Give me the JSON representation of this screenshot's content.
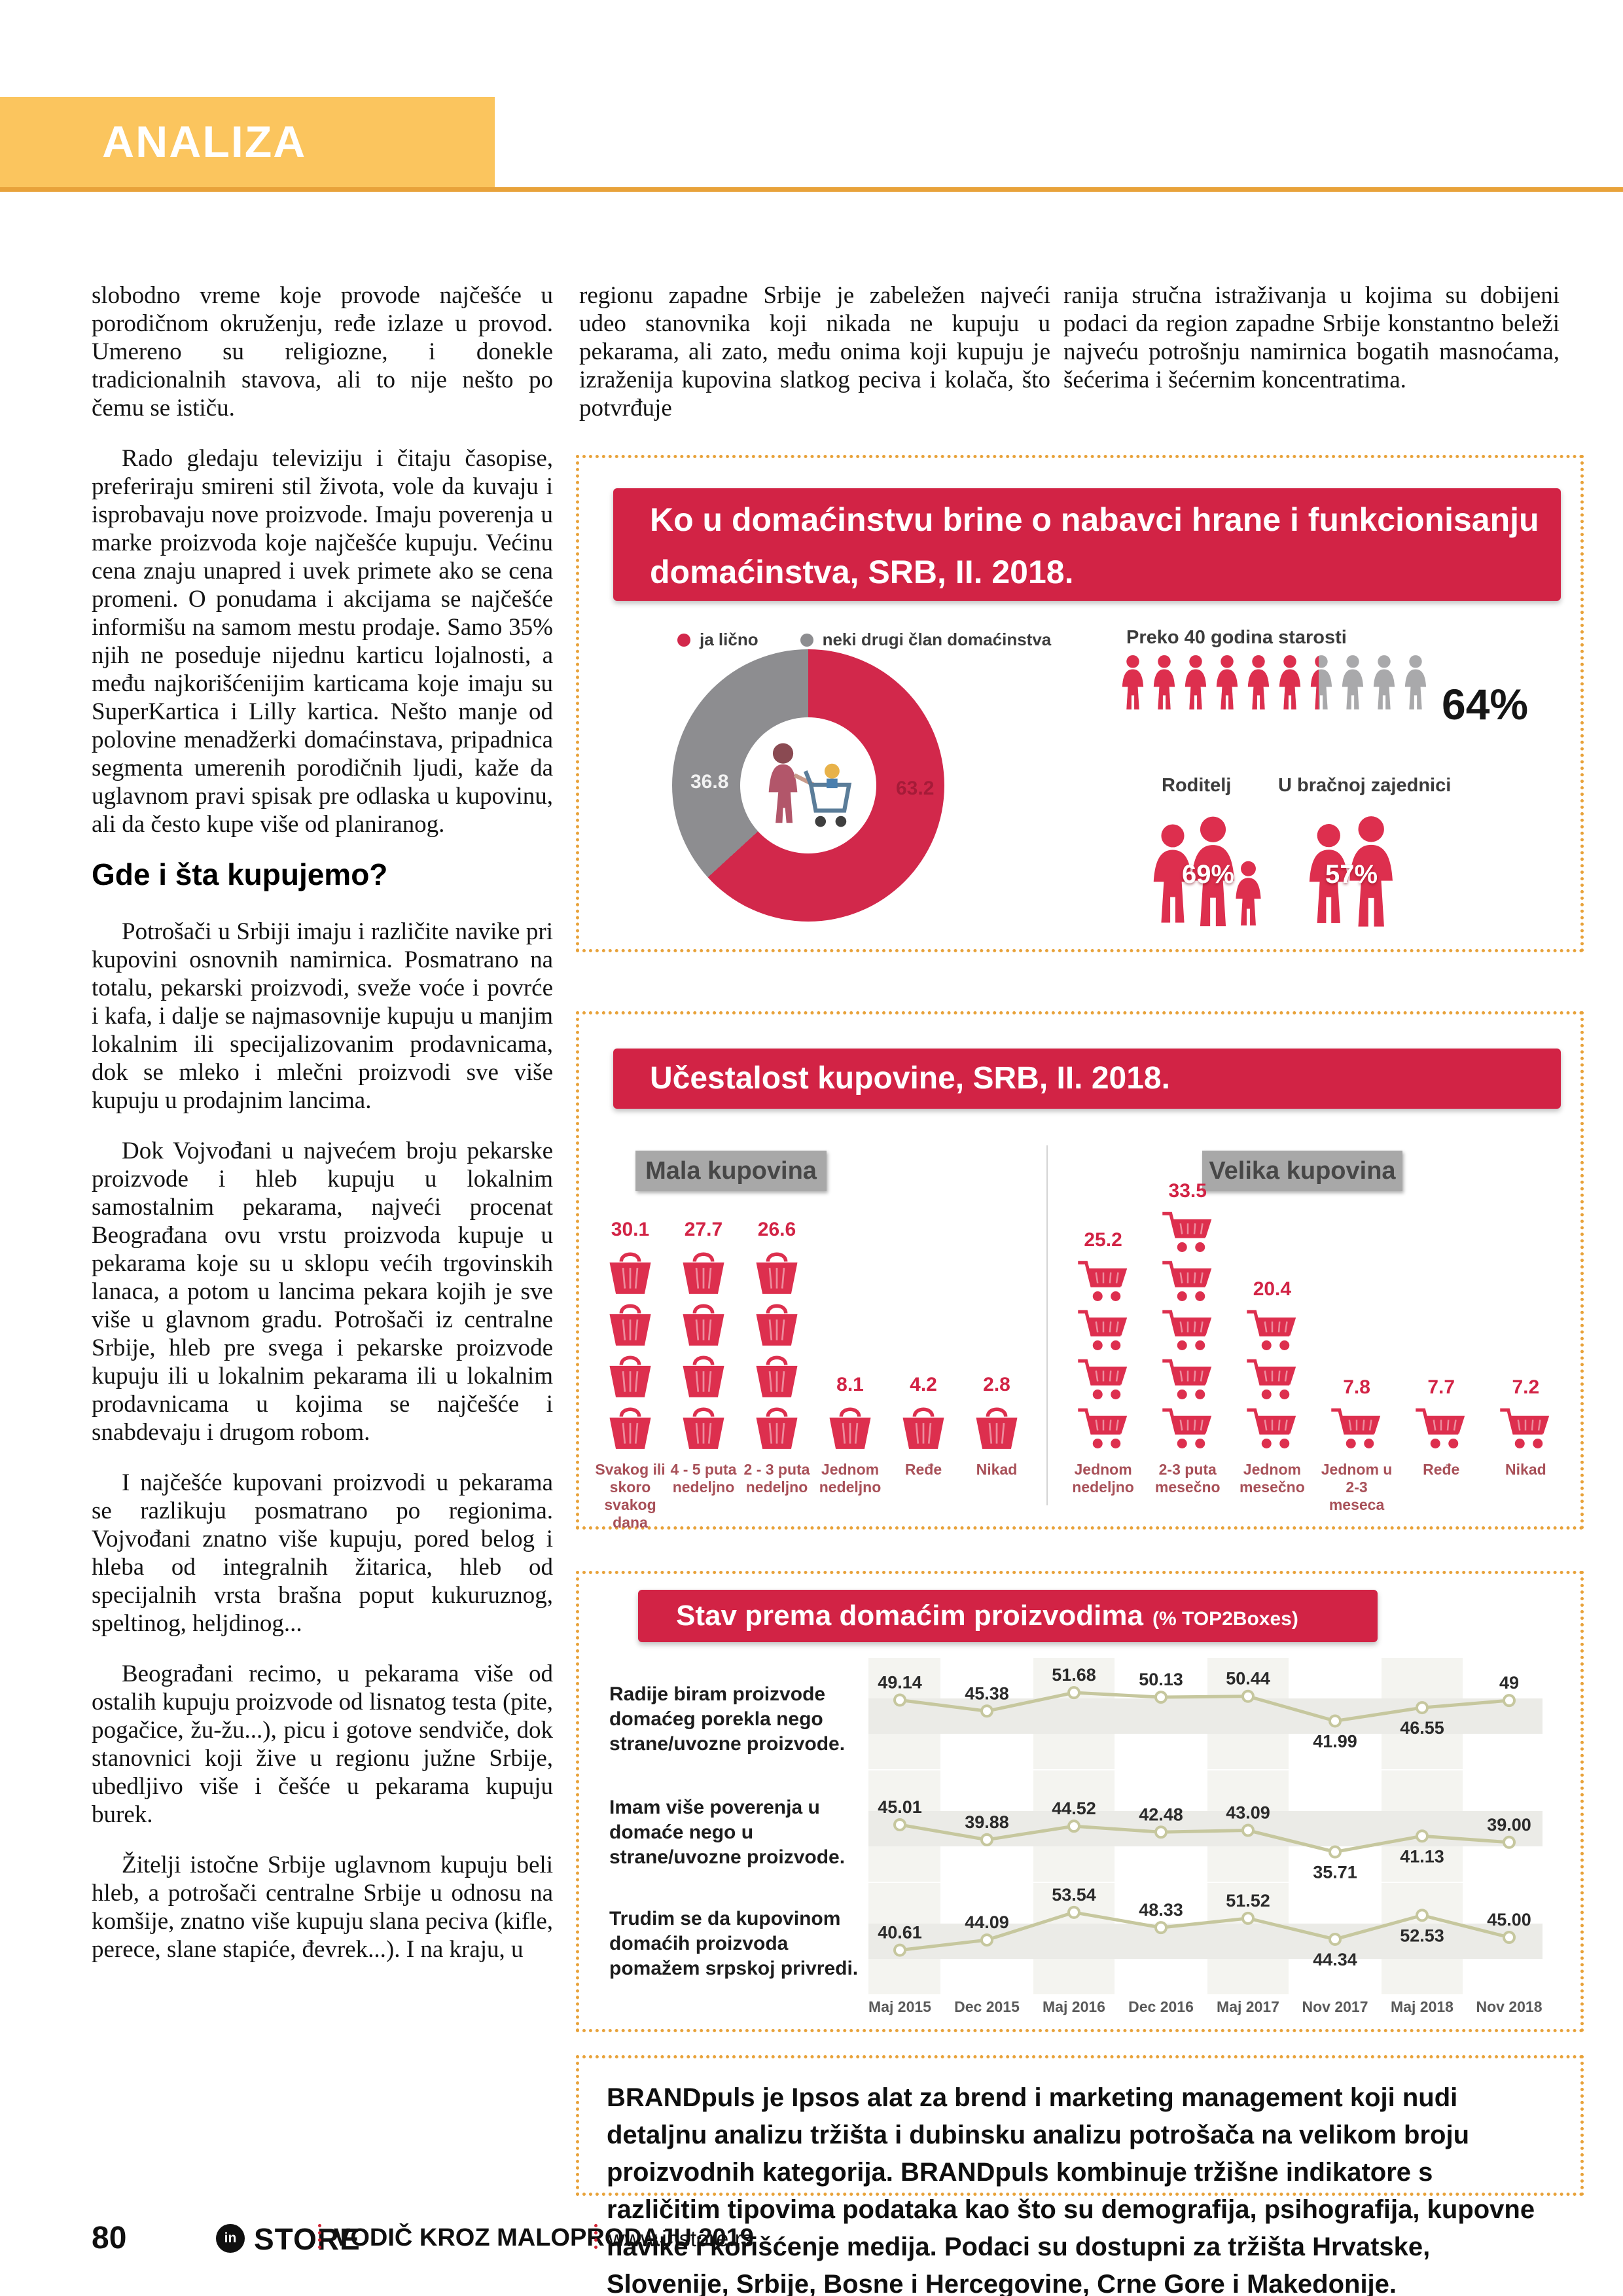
{
  "page": {
    "section_label": "ANALIZA",
    "footer": {
      "page_number": "80",
      "logo_mark": "in",
      "brand": "STORE",
      "guide": "VODIČ KROZ MALOPRODAJU 2019",
      "site": "www.instore.rs"
    }
  },
  "colors": {
    "banner": "#fbc55e",
    "rule": "#e8a23a",
    "red": "#d22345",
    "iconred": "#dd2f4e",
    "slice1": "#d2284b",
    "slice2": "#8d8d90",
    "gray": "#a9a9ab",
    "graybox": "#a8a8a8",
    "line": "#c6c79e",
    "catlabel": "#a85058"
  },
  "article": {
    "col1_before": [
      "slobodno vreme koje provode najčešće u porodičnom okruženju, ređe izlaze u provod. Umereno su religiozne, i donekle tradicionalnih stavova, ali to nije nešto po čemu se ističu.",
      "Rado gledaju televiziju i čitaju časopise, preferiraju smireni stil života, vole da kuvaju i isprobavaju nove proizvode. Imaju poverenja u marke proizvoda koje najčešće kupuju. Većinu cena znaju unapred i uvek primete ako se cena promeni. O ponudama i akcijama se najčešće informišu na samom mestu prodaje. Samo 35% njih ne poseduje nijednu karticu lojalnosti, a među najkorišćenijim karticama koje imaju su SuperKartica i Lilly kartica. Nešto manje od polovine menadžerki domaćinstava, pripadnica segmenta umerenih porodičnih ljudi, kaže da uglavnom pravi spisak pre odlaska u kupovinu, ali da često kupe više od planiranog."
    ],
    "heading": "Gde i šta kupujemo?",
    "col1_after": [
      "Potrošači u Srbiji imaju i različite navike pri kupovini osnovnih namirnica. Posmatrano na totalu, pekarski proizvodi, sveže voće i povrće i kafa, i dalje se najmasovnije kupuju u manjim lokalnim ili specijalizovanim prodavnicama, dok se mleko i mlečni proizvodi sve više kupuju u prodajnim lancima.",
      "Dok Vojvođani u najvećem broju pekarske proizvode i hleb kupuju u lokalnim samostalnim pekarama, najveći procenat Beograđana ovu vrstu proizvoda kupuje u pekarama koje su u sklopu većih trgovinskih lanaca, a potom u lancima pekara kojih je sve više u glavnom gradu. Potrošači iz centralne Srbije, hleb pre svega i pekarske proizvode kupuju ili u lokalnim pekarama ili u lokalnim prodavnicama u kojima se najčešće i snabdevaju i drugom robom.",
      "I najčešće kupovani proizvodi u pekarama se razlikuju posmatrano po regionima. Vojvođani znatno više kupuju, pored belog i hleba od integralnih žitarica, hleb od specijalnih vrsta brašna poput kukuruznog, speltinog, heljdinog...",
      "Beograđani recimo, u pekarama više od ostalih kupuju proizvode od lisnatog testa (pite, pogačice, žu-žu...), picu i gotove sendviče, dok stanovnici koji žive u regionu južne Srbije, ubedljivo više i češće u pekarama kupuju burek.",
      "Žitelji istočne Srbije uglavnom kupuju beli hleb, a potrošači centralne Srbije u odnosu na komšije, znatno više kupuju slana peciva (kifle, perece, slane stapiće, đevrek...). I na kraju, u"
    ],
    "col2": [
      "regionu zapadne Srbije je zabeležen najveći udeo stanovnika koji nikada ne kupuju u pekarama, ali zato, među onima koji kupuju je izraženija kupovina slatkog peciva i kolača, što potvrđuje"
    ],
    "col3": [
      "ranija stručna istraživanja u kojima su dobijeni podaci da region zapadne Srbije konstantno beleži najveću potrošnju namirnica bogatih masnoćama, šećerima i šećernim koncentratima."
    ],
    "brandpuls": "BRANDpuls je Ipsos alat za brend i marketing management koji nudi detaljnu analizu tržišta i dubinsku analizu potrošača na velikom broju proizvodnih kategorija. BRANDpuls kombinuje tržišne indikatore s različitim tipovima podataka kao što su demografija, psihografija, kupovne navike i korišćenje medija. Podaci su dostupni za tržišta Hrvatske, Slovenije, Srbije, Bosne i Hercegovine, Crne Gore i Makedonije."
  },
  "chart_data": [
    {
      "type": "pie",
      "title": "Ko u domaćinstvu brine o nabavci hrane i funkcionisanju domaćinstva, SRB, II. 2018.",
      "legend": [
        "ja lično",
        "neki drugi član domaćinstva"
      ],
      "values": [
        63.2,
        36.8
      ],
      "colors": [
        "#d2284b",
        "#8d8d90"
      ],
      "annotations": [
        {
          "label": "Preko 40 godina starosti",
          "value": "64%",
          "icons_total": 10,
          "icons_filled": 6.4
        },
        {
          "label": "Roditelj",
          "value": "69%"
        },
        {
          "label": "U bračnoj zajednici",
          "value": "57%"
        }
      ]
    },
    {
      "type": "bar",
      "title": "Učestalost kupovine, SRB, II. 2018.",
      "panels": [
        {
          "label": "Mala kupovina",
          "icon": "basket",
          "categories": [
            "Svakog ili skoro svakog dana",
            "4 - 5 puta nedeljno",
            "2 - 3 puta nedeljno",
            "Jednom nedeljno",
            "Ređe",
            "Nikad"
          ],
          "values": [
            30.1,
            27.7,
            26.6,
            8.1,
            4.2,
            2.8
          ]
        },
        {
          "label": "Velika kupovina",
          "icon": "cart",
          "categories": [
            "Jednom nedeljno",
            "2-3 puta mesečno",
            "Jednom mesečno",
            "Jednom u 2-3 meseca",
            "Ređe",
            "Nikad"
          ],
          "values": [
            25.2,
            33.5,
            20.4,
            7.8,
            7.7,
            7.2
          ]
        }
      ]
    },
    {
      "type": "line",
      "title": "Stav prema domaćim proizvodima",
      "title_suffix": "(% TOP2Boxes)",
      "x": [
        "Maj 2015",
        "Dec 2015",
        "Maj 2016",
        "Dec 2016",
        "Maj 2017",
        "Nov 2017",
        "Maj 2018",
        "Nov 2018"
      ],
      "ylim": [
        30,
        60
      ],
      "grid": true,
      "series": [
        {
          "name": "Radije biram proizvode domaćeg porekla nego strane/uvozne proizvode.",
          "values": [
            49.14,
            45.38,
            51.68,
            50.13,
            50.44,
            41.99,
            46.55,
            49
          ],
          "labels": [
            "49.14",
            "45.38",
            "51.68",
            "50.13",
            "50.44",
            "41.99",
            "46.55",
            "49"
          ]
        },
        {
          "name": "Imam više poverenja u domaće nego u strane/uvozne proizvode.",
          "values": [
            45.01,
            39.88,
            44.52,
            42.48,
            43.09,
            35.71,
            41.13,
            39.0
          ],
          "labels": [
            "45.01",
            "39.88",
            "44.52",
            "42.48",
            "43.09",
            "35.71",
            "41.13",
            "39.00"
          ]
        },
        {
          "name": "Trudim se da kupovinom domaćih proizvoda pomažem srpskoj privredi.",
          "values": [
            40.61,
            44.09,
            53.54,
            48.33,
            51.52,
            44.34,
            52.53,
            45.0
          ],
          "labels": [
            "40.61",
            "44.09",
            "53.54",
            "48.33",
            "51.52",
            "44.34",
            "52.53",
            "45.00"
          ]
        }
      ]
    }
  ]
}
